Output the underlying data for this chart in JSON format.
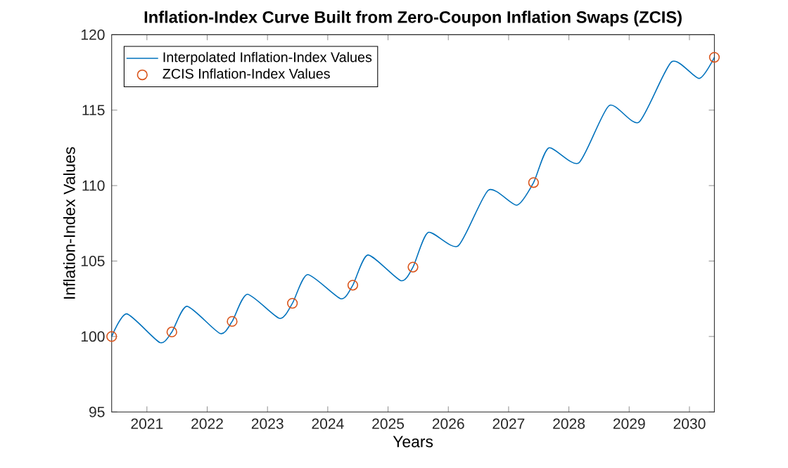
{
  "chart_data": {
    "type": "line",
    "title": "Inflation-Index Curve Built from Zero-Coupon Inflation Swaps (ZCIS)",
    "xlabel": "Years",
    "ylabel": "Inflation-Index Values",
    "series": [
      {
        "name": "Interpolated Inflation-Index Values",
        "color": "#0072bd",
        "marker": "none",
        "line_style": "solid",
        "x": [
          "2020-06-01",
          "2020-09-01",
          "2021-03-20",
          "2021-06-01",
          "2021-09-01",
          "2022-03-20",
          "2022-06-01",
          "2022-09-01",
          "2023-03-15",
          "2023-06-01",
          "2023-09-01",
          "2024-03-20",
          "2024-06-01",
          "2024-09-01",
          "2025-03-20",
          "2025-06-01",
          "2025-09-01",
          "2026-03-01",
          "2026-09-01",
          "2027-02-20",
          "2027-06-01",
          "2027-09-01",
          "2028-03-01",
          "2028-09-01",
          "2029-03-01",
          "2029-09-15",
          "2030-03-01",
          "2030-06-01"
        ],
        "values": [
          100,
          101.5,
          99.6,
          100.3,
          102.0,
          100.2,
          101.0,
          102.8,
          101.2,
          102.2,
          104.1,
          102.5,
          103.4,
          105.4,
          103.7,
          104.6,
          106.9,
          106.0,
          109.7,
          108.7,
          110.2,
          112.5,
          111.5,
          115.3,
          114.2,
          118.2,
          117.1,
          118.5
        ]
      },
      {
        "name": "ZCIS Inflation-Index Values",
        "type": "scatter",
        "color": "#d95319",
        "marker": "circle",
        "x": [
          "2020-06-01",
          "2021-06-01",
          "2022-06-01",
          "2023-06-01",
          "2024-06-01",
          "2025-06-01",
          "2027-06-01",
          "2030-06-01"
        ],
        "values": [
          100,
          100.3,
          101.0,
          102.2,
          103.4,
          104.6,
          110.2,
          118.5
        ]
      }
    ],
    "xlim": [
      "2020-06-01",
      "2030-06-01"
    ],
    "ylim": [
      95,
      120
    ],
    "xticks": [
      "2021",
      "2022",
      "2023",
      "2024",
      "2025",
      "2026",
      "2027",
      "2028",
      "2029",
      "2030"
    ],
    "yticks": [
      95,
      100,
      105,
      110,
      115,
      120
    ],
    "legend": "top left",
    "grid": false
  }
}
